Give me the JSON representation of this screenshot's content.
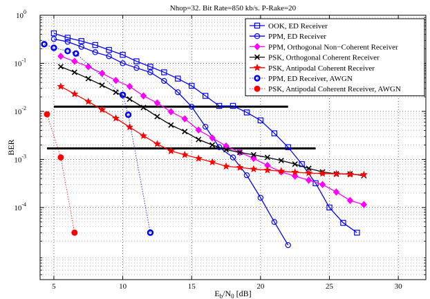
{
  "chart_data": {
    "type": "line",
    "title": "Nhop=32. Bit Rate=850 kb/s. P-Rake=20",
    "xlabel": "E",
    "xlabel_sub_b": "b",
    "xlabel_mid": "/N",
    "xlabel_sub_0": "0",
    "xlabel_unit": " [dB]",
    "ylabel": "BER",
    "xlim": [
      4,
      32
    ],
    "ylim_log10": [
      -5.5,
      0
    ],
    "y_scale": "log",
    "grid": true,
    "legend_position": "top-right",
    "x_ticks": [
      "5",
      "10",
      "15",
      "20",
      "25",
      "30"
    ],
    "y_ticks": [
      {
        "base": "10",
        "exp": "0"
      },
      {
        "base": "10",
        "exp": "-1"
      },
      {
        "base": "10",
        "exp": "-2"
      },
      {
        "base": "10",
        "exp": "-3"
      },
      {
        "base": "10",
        "exp": "-4"
      }
    ],
    "series": [
      {
        "name": "OOK, ED Receiver",
        "color": "#0000ff",
        "marker": "square",
        "line": "solid",
        "x": [
          5,
          6,
          7,
          8,
          9,
          10,
          11,
          12,
          13,
          14,
          15,
          16,
          17,
          18,
          19,
          20,
          21,
          22,
          23,
          24,
          25,
          26,
          27
        ],
        "y": [
          0.42,
          0.34,
          0.29,
          0.24,
          0.19,
          0.15,
          0.11,
          0.085,
          0.065,
          0.048,
          0.034,
          0.021,
          0.013,
          0.013,
          0.0095,
          0.0065,
          0.0035,
          0.0018,
          0.0008,
          0.00032,
          0.0001,
          4.8e-05,
          3e-05
        ]
      },
      {
        "name": "PPM, ED Receiver",
        "color": "#0000ff",
        "marker": "circle",
        "line": "solid",
        "x": [
          5,
          6,
          7,
          8,
          9,
          10,
          11,
          12,
          13,
          14,
          15,
          16,
          17,
          18,
          19,
          20,
          21,
          22
        ],
        "y": [
          0.32,
          0.28,
          0.22,
          0.17,
          0.14,
          0.1,
          0.08,
          0.065,
          0.043,
          0.025,
          0.0125,
          0.0048,
          0.0018,
          0.0011,
          0.00047,
          0.00016,
          5e-05,
          1.65e-05
        ]
      },
      {
        "name": "PPM, Orthogonal Non−Coherent Receiver",
        "color": "#ff00ff",
        "marker": "diamond",
        "line": "solid",
        "x": [
          5.5,
          6.5,
          7.5,
          8.5,
          9.5,
          10.5,
          11.5,
          12.5,
          13.5,
          14.5,
          15.5,
          16.5,
          17.5,
          18.5,
          19.5,
          20.5,
          21.5,
          22.5,
          23.5,
          24.5,
          25.5,
          26.5,
          27.5
        ],
        "y": [
          0.14,
          0.11,
          0.085,
          0.062,
          0.044,
          0.033,
          0.021,
          0.015,
          0.0098,
          0.007,
          0.0041,
          0.0028,
          0.0019,
          0.0014,
          0.00105,
          0.00075,
          0.00055,
          0.00045,
          0.00037,
          0.0003,
          0.00021,
          0.00014,
          0.000115
        ]
      },
      {
        "name": "PSK, Orthogonal Coherent Receiver",
        "color": "#000000",
        "marker": "x",
        "line": "solid",
        "x": [
          5.5,
          6.5,
          7.5,
          8.5,
          9.5,
          10.5,
          11.5,
          12.5,
          13.5,
          14.5,
          15.5,
          16.5,
          17.5,
          18.5,
          19.5,
          20.5,
          21.5,
          22.5,
          23.5,
          24.5,
          25.5,
          26.5,
          27.5
        ],
        "y": [
          0.085,
          0.065,
          0.048,
          0.035,
          0.025,
          0.018,
          0.012,
          0.0078,
          0.0052,
          0.0038,
          0.0026,
          0.002,
          0.0016,
          0.0014,
          0.00125,
          0.0011,
          0.00095,
          0.0008,
          0.00065,
          0.00055,
          0.0005,
          0.0005,
          0.00046
        ]
      },
      {
        "name": "PSK, Antipodal Coherent Receiver",
        "color": "#ff0000",
        "marker": "star",
        "line": "solid",
        "x": [
          5.5,
          6.5,
          7.5,
          8.5,
          9.5,
          10.5,
          11.5,
          12.5,
          13.5,
          14.5,
          15.5,
          16.5,
          17.5,
          18.5,
          19.5,
          20.5,
          21.5,
          22.5,
          23.5,
          24.5,
          25.5,
          26.5,
          27.5
        ],
        "y": [
          0.033,
          0.023,
          0.016,
          0.0108,
          0.0072,
          0.0047,
          0.0031,
          0.0021,
          0.0015,
          0.00125,
          0.00105,
          0.00088,
          0.00072,
          0.00068,
          0.00063,
          0.0006,
          0.00057,
          0.00054,
          0.00052,
          0.00051,
          0.0005,
          0.00049,
          0.00048
        ]
      },
      {
        "name": "PPM, ED Receiver, AWGN",
        "color": "#0000ff",
        "marker": "circle-bold",
        "line": "dotted",
        "x": [
          4.3,
          5,
          6,
          6.6,
          10,
          10.4,
          12
        ],
        "y": [
          0.25,
          0.21,
          0.18,
          0.16,
          0.022,
          0.0085,
          3e-05
        ]
      },
      {
        "name": "PSK, Antipodal Coherent Receiver, AWGN",
        "color": "#ff0000",
        "marker": "filled-circle",
        "line": "dotted",
        "x": [
          4.5,
          5.5,
          6.5
        ],
        "y": [
          0.0087,
          0.0011,
          3e-05
        ]
      }
    ],
    "reference_lines": [
      {
        "y": 0.0125,
        "x": [
          5,
          22
        ],
        "color": "#000000"
      },
      {
        "y": 0.0017,
        "x": [
          4.5,
          24
        ],
        "color": "#000000"
      }
    ]
  }
}
